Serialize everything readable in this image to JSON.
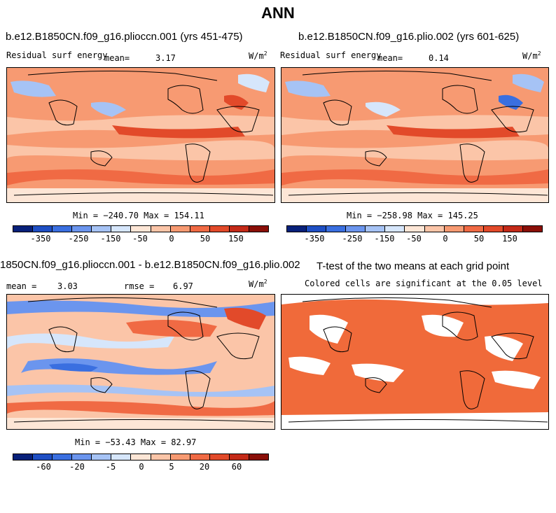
{
  "figure_title": "ANN",
  "panels": [
    {
      "title": "b.e12.B1850CN.f09_g16.plioccn.001 (yrs 451-475)",
      "variable": "Residual surf energy",
      "mean_label": "mean=",
      "mean_value": "3.17",
      "units": "W/m",
      "units_exp": "2",
      "minmax": "Min = −240.70 Max = 154.11"
    },
    {
      "title": "b.e12.B1850CN.f09_g16.plio.002 (yrs 601-625)",
      "variable": "Residual surf energy",
      "mean_label": "mean=",
      "mean_value": "0.14",
      "units": "W/m",
      "units_exp": "2",
      "minmax": "Min = −258.98 Max = 145.25"
    },
    {
      "title": "1850CN.f09_g16.plioccn.001 - b.e12.B1850CN.f09_g16.plio.002",
      "mean_label": "mean =",
      "mean_value": "3.03",
      "rmse_label": "rmse =",
      "rmse_value": "6.97",
      "units": "W/m",
      "units_exp": "2",
      "minmax": "Min = −53.43 Max = 82.97"
    },
    {
      "title": "T-test of the two means at each grid point",
      "subtitle": "Colored cells are significant at the 0.05 level"
    }
  ],
  "colorbar_colors": [
    "#08217a",
    "#1f4fc4",
    "#3a6fe0",
    "#6b95ee",
    "#a6c3f5",
    "#d6e6fb",
    "#fde6d6",
    "#fbc5a8",
    "#f79a72",
    "#f06a44",
    "#e24a2a",
    "#c42a18",
    "#8a0f08"
  ],
  "chart_data": [
    {
      "type": "heatmap",
      "title": "b.e12.B1850CN.f09_g16.plioccn.001 (yrs 451-475)",
      "colorbar_ticks": [
        "-350",
        "-250",
        "-150",
        "-50",
        "0",
        "50",
        "150"
      ],
      "min": -240.7,
      "max": 154.11,
      "mean": 3.17,
      "units": "W/m2"
    },
    {
      "type": "heatmap",
      "title": "b.e12.B1850CN.f09_g16.plio.002 (yrs 601-625)",
      "colorbar_ticks": [
        "-350",
        "-250",
        "-150",
        "-50",
        "0",
        "50",
        "150"
      ],
      "min": -258.98,
      "max": 145.25,
      "mean": 0.14,
      "units": "W/m2"
    },
    {
      "type": "heatmap",
      "title": "1850CN.f09_g16.plioccn.001 - b.e12.B1850CN.f09_g16.plio.002",
      "colorbar_ticks": [
        "-60",
        "-20",
        "-5",
        "0",
        "5",
        "20",
        "60"
      ],
      "min": -53.43,
      "max": 82.97,
      "mean": 3.03,
      "rmse": 6.97,
      "units": "W/m2"
    },
    {
      "type": "heatmap",
      "title": "T-test of the two means at each grid point",
      "subtitle": "Colored cells are significant at the 0.05 level"
    }
  ]
}
